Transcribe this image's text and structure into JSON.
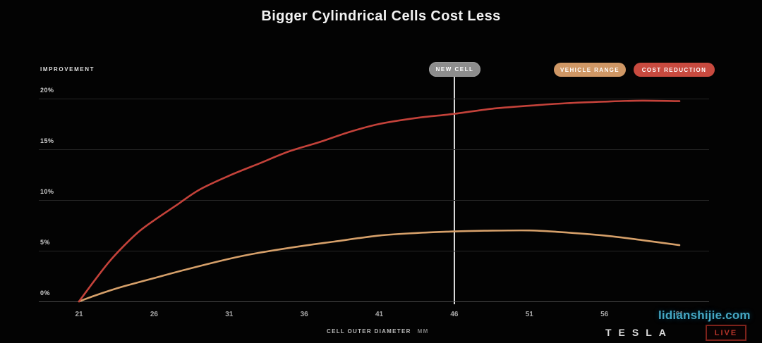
{
  "page": {
    "title": "Bigger Cylindrical Cells Cost Less"
  },
  "axes": {
    "improvement_label": "IMPROVEMENT",
    "x_title": "CELL OUTER DIAMETER",
    "x_unit": "MM"
  },
  "new_cell_badge": "NEW CELL",
  "legend": {
    "vehicle_range": {
      "label": "VEHICLE RANGE",
      "color": "#cf9765"
    },
    "cost_reduction": {
      "label": "COST REDUCTION",
      "color": "#c84a3f"
    }
  },
  "footer": {
    "brand": "TESLA",
    "live_badge": "LIVE"
  },
  "watermark": "lidianshijie.com",
  "colors": {
    "background": "#030303",
    "gridline": "#262626",
    "zero_line": "#4c4c4c",
    "new_cell_line": "#d8d8d8",
    "new_cell_badge": "#8d8d8d",
    "vehicle_range_curve": "#d6a06a",
    "cost_reduction_curve": "#c4423a"
  },
  "chart_data": {
    "type": "line",
    "title": "Bigger Cylindrical Cells Cost Less",
    "xlabel": "CELL OUTER DIAMETER (MM)",
    "ylabel": "IMPROVEMENT",
    "x_ticks": [
      21,
      26,
      31,
      36,
      41,
      46,
      51,
      56,
      61
    ],
    "y_ticks": [
      0,
      5,
      10,
      15,
      20
    ],
    "y_tick_labels": [
      "0%",
      "5%",
      "10%",
      "15%",
      "20%"
    ],
    "xlim": [
      21,
      61
    ],
    "ylim": [
      0,
      20
    ],
    "grid": "horizontal",
    "legend_position": "top-right",
    "annotation": {
      "label": "NEW CELL",
      "x": 46
    },
    "series": [
      {
        "name": "VEHICLE RANGE",
        "color": "#d6a06a",
        "values_at_ticks": [
          0,
          2.3,
          4.2,
          5.5,
          6.5,
          6.9,
          7.0,
          6.5,
          5.6
        ],
        "points": [
          [
            21,
            0
          ],
          [
            22,
            0.55
          ],
          [
            23,
            1.05
          ],
          [
            24,
            1.5
          ],
          [
            26,
            2.3
          ],
          [
            28,
            3.1
          ],
          [
            31,
            4.2
          ],
          [
            33,
            4.8
          ],
          [
            36,
            5.5
          ],
          [
            38,
            5.9
          ],
          [
            41,
            6.5
          ],
          [
            43.5,
            6.75
          ],
          [
            46,
            6.9
          ],
          [
            48,
            6.97
          ],
          [
            51,
            7.0
          ],
          [
            53,
            6.85
          ],
          [
            56,
            6.5
          ],
          [
            58.5,
            6.05
          ],
          [
            61,
            5.55
          ]
        ]
      },
      {
        "name": "COST REDUCTION",
        "color": "#c4423a",
        "values_at_ticks": [
          0,
          8.0,
          12.4,
          15.2,
          17.5,
          18.5,
          19.3,
          19.7,
          19.75
        ],
        "points": [
          [
            21,
            0
          ],
          [
            22,
            2.0
          ],
          [
            23,
            3.9
          ],
          [
            24,
            5.5
          ],
          [
            25,
            6.9
          ],
          [
            26,
            8.0
          ],
          [
            27.5,
            9.5
          ],
          [
            29,
            11.0
          ],
          [
            31,
            12.4
          ],
          [
            33,
            13.6
          ],
          [
            35,
            14.8
          ],
          [
            37,
            15.7
          ],
          [
            39,
            16.7
          ],
          [
            41,
            17.5
          ],
          [
            43.5,
            18.1
          ],
          [
            46,
            18.5
          ],
          [
            48.5,
            19.0
          ],
          [
            51,
            19.3
          ],
          [
            53.5,
            19.55
          ],
          [
            56,
            19.7
          ],
          [
            58.5,
            19.8
          ],
          [
            61,
            19.75
          ]
        ]
      }
    ]
  }
}
